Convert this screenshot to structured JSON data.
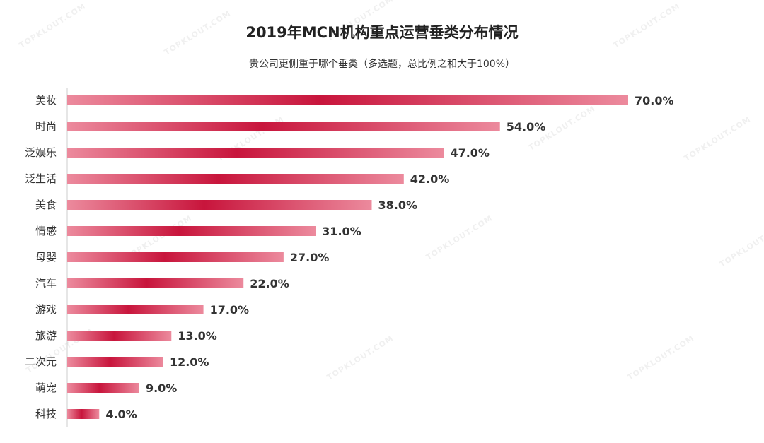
{
  "title": "2019年MCN机构重点运营垂类分布情况",
  "subtitle": "贵公司更侧重于哪个垂类（多选题，总比例之和大于100%）",
  "watermark": "TOPKLOUT.COM",
  "colors": {
    "bar_dark": "#c8153c",
    "bar_light": "#ec8a9d",
    "axis": "#cccccc",
    "label": "#333333"
  },
  "chart_data": {
    "type": "bar",
    "orientation": "horizontal",
    "categories": [
      "美妆",
      "时尚",
      "泛娱乐",
      "泛生活",
      "美食",
      "情感",
      "母婴",
      "汽车",
      "游戏",
      "旅游",
      "二次元",
      "萌宠",
      "科技"
    ],
    "values": [
      70.0,
      54.0,
      47.0,
      42.0,
      38.0,
      31.0,
      27.0,
      22.0,
      17.0,
      13.0,
      12.0,
      9.0,
      4.0
    ],
    "value_labels": [
      "70.0%",
      "54.0%",
      "47.0%",
      "42.0%",
      "38.0%",
      "31.0%",
      "27.0%",
      "22.0%",
      "17.0%",
      "13.0%",
      "12.0%",
      "9.0%",
      "4.0%"
    ],
    "unit": "%",
    "title": "2019年MCN机构重点运营垂类分布情况",
    "subtitle": "贵公司更侧重于哪个垂类（多选题，总比例之和大于100%）",
    "xlabel": "",
    "ylabel": "",
    "grid": false,
    "legend": "none"
  }
}
